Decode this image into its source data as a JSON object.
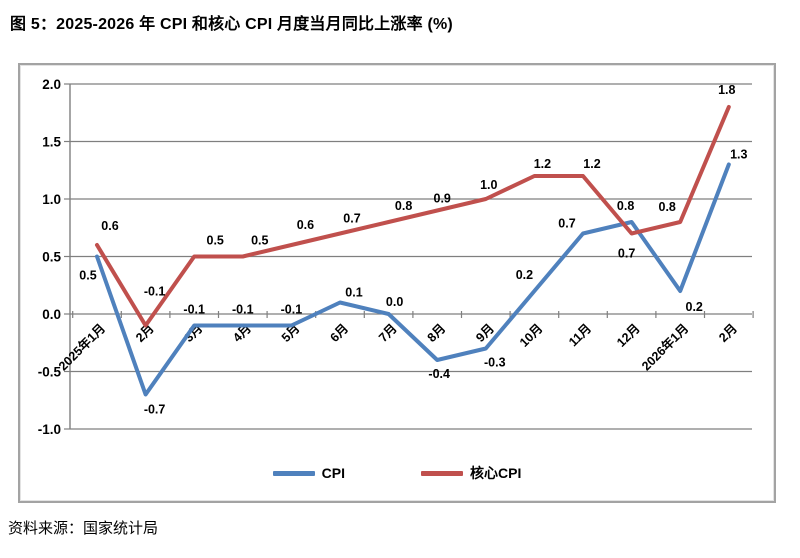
{
  "title": "图 5：2025-2026 年 CPI 和核心 CPI 月度当月同比上涨率 (%)",
  "source": "资料来源：国家统计局",
  "chart_data": {
    "type": "line",
    "categories": [
      "2025年1月",
      "2月",
      "3月",
      "4月",
      "5月",
      "6月",
      "7月",
      "8月",
      "9月",
      "10月",
      "11月",
      "12月",
      "2026年1月",
      "2月"
    ],
    "series": [
      {
        "name": "CPI",
        "color": "#4F81BD",
        "values": [
          0.5,
          -0.7,
          -0.1,
          -0.1,
          -0.1,
          0.1,
          0.0,
          -0.4,
          -0.3,
          0.2,
          0.7,
          0.8,
          0.2,
          1.3
        ],
        "label_offsets": [
          [
            -9,
            23
          ],
          [
            9,
            19
          ],
          [
            0,
            -12
          ],
          [
            0,
            -12
          ],
          [
            0,
            -12
          ],
          [
            14,
            -6
          ],
          [
            6,
            -8
          ],
          [
            2,
            18
          ],
          [
            9,
            18
          ],
          [
            -10,
            -12
          ],
          [
            -16,
            -6
          ],
          [
            -6,
            -12
          ],
          [
            14,
            20
          ],
          [
            10,
            -6
          ]
        ]
      },
      {
        "name": "核心CPI",
        "color": "#C0504D",
        "values": [
          0.6,
          -0.1,
          0.5,
          0.5,
          0.6,
          0.7,
          0.8,
          0.9,
          1.0,
          1.2,
          1.2,
          0.7,
          0.8,
          1.8
        ],
        "label_offsets": [
          [
            13,
            -15
          ],
          [
            9,
            -30
          ],
          [
            21,
            -12
          ],
          [
            17,
            -12
          ],
          [
            14,
            -16
          ],
          [
            12,
            -11
          ],
          [
            15,
            -12
          ],
          [
            5,
            -8
          ],
          [
            3,
            -10
          ],
          [
            8,
            -8
          ],
          [
            9,
            -8
          ],
          [
            -5,
            24
          ],
          [
            -13,
            -11
          ],
          [
            -2,
            -13
          ]
        ]
      }
    ],
    "ylim": [
      -1.0,
      2.0
    ],
    "ytick_step": 0.5,
    "yticks": [
      "2.0",
      "1.5",
      "1.0",
      "0.5",
      "0.0",
      "-0.5",
      "-1.0"
    ],
    "grid": true,
    "grid_color": "#7f7f7f",
    "axis_color": "#7f7f7f",
    "label_color": "#000000",
    "legend_position": "bottom",
    "title": "",
    "xlabel": "",
    "ylabel": ""
  }
}
